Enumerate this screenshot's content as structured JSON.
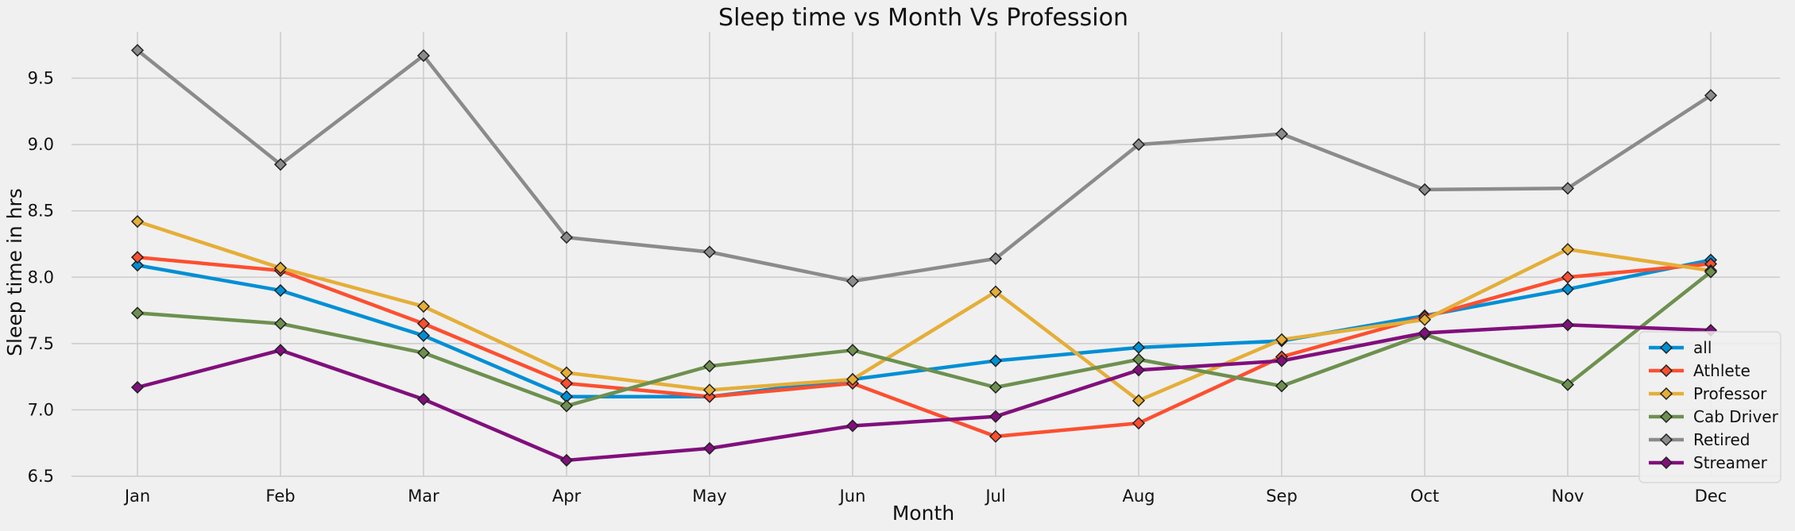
{
  "chart_data": {
    "type": "line",
    "title": "Sleep time vs Month Vs Profession",
    "xlabel": "Month",
    "ylabel": "Sleep time in hrs",
    "categories": [
      "Jan",
      "Feb",
      "Mar",
      "Apr",
      "May",
      "Jun",
      "Jul",
      "Aug",
      "Sep",
      "Oct",
      "Nov",
      "Dec"
    ],
    "ylim": [
      6.5,
      9.85
    ],
    "yticks": [
      "6.5",
      "7.0",
      "7.5",
      "8.0",
      "8.5",
      "9.0",
      "9.5"
    ],
    "grid": true,
    "legend_position": "bottom-right",
    "marker": "diamond",
    "series": [
      {
        "name": "all",
        "color": "#008fd5",
        "values": [
          8.09,
          7.9,
          7.56,
          7.1,
          7.1,
          7.23,
          7.37,
          7.47,
          7.52,
          7.71,
          7.91,
          8.13
        ]
      },
      {
        "name": "Athlete",
        "color": "#fc4f30",
        "values": [
          8.15,
          8.05,
          7.65,
          7.2,
          7.1,
          7.2,
          6.8,
          6.9,
          7.4,
          7.7,
          8.0,
          8.1
        ]
      },
      {
        "name": "Professor",
        "color": "#e5ae38",
        "values": [
          8.42,
          8.07,
          7.78,
          7.28,
          7.15,
          7.23,
          7.89,
          7.07,
          7.53,
          7.68,
          8.21,
          8.05
        ]
      },
      {
        "name": "Cab Driver",
        "color": "#6d904f",
        "values": [
          7.73,
          7.65,
          7.43,
          7.03,
          7.33,
          7.45,
          7.17,
          7.38,
          7.18,
          7.57,
          7.19,
          8.04
        ]
      },
      {
        "name": "Retired",
        "color": "#8b8b8b",
        "values": [
          9.71,
          8.85,
          9.67,
          8.3,
          8.19,
          7.97,
          8.14,
          9.0,
          9.08,
          8.66,
          8.67,
          9.37
        ]
      },
      {
        "name": "Streamer",
        "color": "#810f7c",
        "values": [
          7.17,
          7.45,
          7.08,
          6.62,
          6.71,
          6.88,
          6.95,
          7.3,
          7.37,
          7.58,
          7.64,
          7.6
        ]
      }
    ]
  }
}
